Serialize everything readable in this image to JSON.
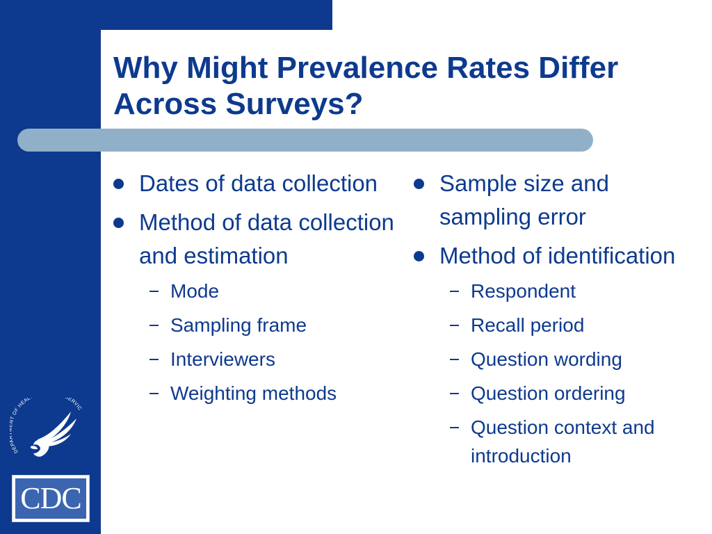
{
  "slide": {
    "title": "Why Might Prevalence Rates Differ Across Surveys?",
    "colors": {
      "primary_blue": "#0d3a8e",
      "accent_bar": "#8fb0c8",
      "background": "#ffffff"
    }
  },
  "left_column": {
    "bullets": [
      {
        "text": "Dates of data collection",
        "sub": []
      },
      {
        "text": "Method of data collection and estimation",
        "sub": [
          "Mode",
          "Sampling frame",
          "Interviewers",
          "Weighting methods"
        ]
      }
    ]
  },
  "right_column": {
    "bullets": [
      {
        "text": "Sample size and sampling error",
        "sub": []
      },
      {
        "text": "Method of identification",
        "sub": [
          "Respondent",
          "Recall period",
          "Question wording",
          "Question ordering",
          "Question context and introduction"
        ]
      }
    ]
  },
  "logos": {
    "seal_text": "DEPARTMENT OF HEALTH & HUMAN SERVICES · USA",
    "cdc_text": "CDC"
  }
}
